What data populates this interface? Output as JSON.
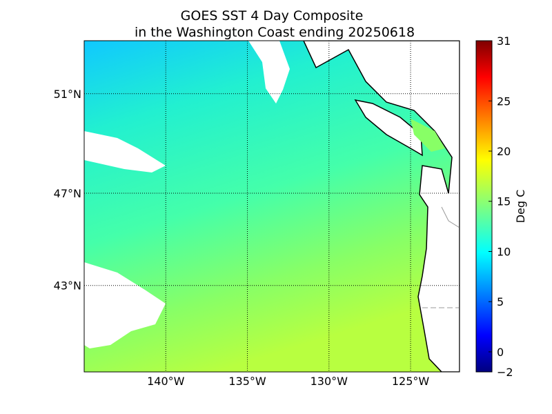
{
  "map": {
    "title": [
      "GOES SST 4 Day Composite",
      "in the Washington Coast ending 20250618"
    ],
    "lon_lim": [
      -145,
      -122
    ],
    "lat_lim": [
      39,
      53
    ],
    "latitudes": [
      {
        "value": 51,
        "label": "51°N"
      },
      {
        "value": 47,
        "label": "47°N"
      },
      {
        "value": 43,
        "label": "43°N"
      }
    ],
    "longitudes": [
      {
        "value": -140,
        "label": "140°W"
      },
      {
        "value": -135,
        "label": "135°W"
      },
      {
        "value": -130,
        "label": "130°W"
      },
      {
        "value": -125,
        "label": "125°W"
      }
    ],
    "colorbar": {
      "label": "Deg C",
      "lim": [
        -2,
        31
      ],
      "ticks": [
        {
          "value": -2,
          "label": "−2"
        },
        0,
        5,
        10,
        15,
        20,
        25,
        31
      ]
    }
  }
}
